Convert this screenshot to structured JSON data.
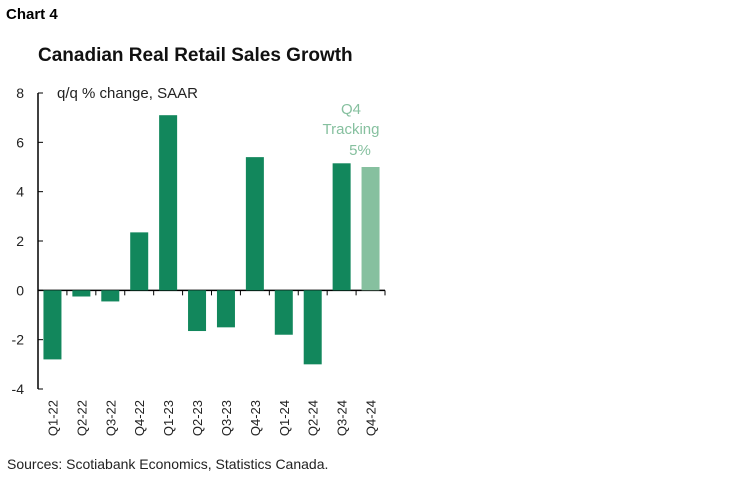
{
  "chart_label": "Chart 4",
  "chart_data": {
    "type": "bar",
    "title": "Canadian Real Retail Sales Growth",
    "ylabel": "q/q % change, SAAR",
    "categories": [
      "Q1-22",
      "Q2-22",
      "Q3-22",
      "Q4-22",
      "Q1-23",
      "Q2-23",
      "Q3-23",
      "Q4-23",
      "Q1-24",
      "Q2-24",
      "Q3-24",
      "Q4-24"
    ],
    "values": [
      -2.8,
      -0.25,
      -0.45,
      2.35,
      7.1,
      -1.65,
      -1.5,
      5.4,
      -1.8,
      -3.0,
      5.15,
      5.0
    ],
    "ylim": [
      -4,
      8
    ],
    "yticks": [
      "8",
      "6",
      "4",
      "2",
      "0",
      "-2",
      "-4"
    ],
    "grid": false,
    "colors": {
      "actual": "#12875c",
      "tracking": "#86c09f"
    },
    "highlight_index": 11,
    "annotation": [
      "Q4",
      "Tracking",
      "5%"
    ]
  },
  "source": "Sources: Scotiabank Economics, Statistics Canada."
}
